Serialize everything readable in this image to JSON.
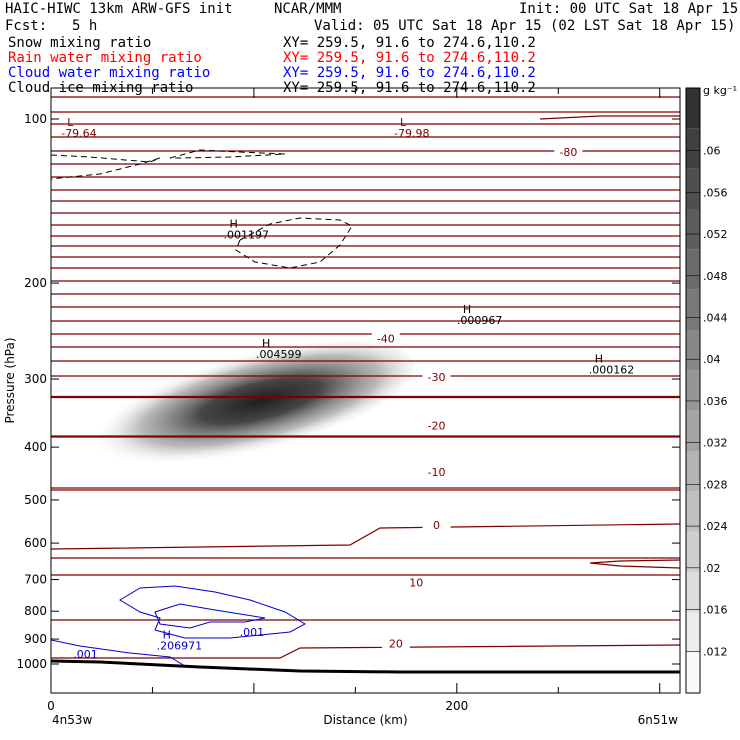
{
  "header": {
    "title_left": "HAIC-HIWC 13km ARW-GFS init",
    "center": "NCAR/MMM",
    "init": "Init: 00 UTC Sat 18 Apr 15",
    "fcst_label": "Fcst:",
    "fcst_value": "5 h",
    "valid": "Valid: 05 UTC Sat 18 Apr 15 (02 LST Sat 18 Apr 15)"
  },
  "legend": [
    {
      "name": "Snow mixing ratio",
      "xy": "XY= 259.5, 91.6 to 274.6,110.2",
      "color": "#000000"
    },
    {
      "name": "Rain water mixing ratio",
      "xy": "XY= 259.5, 91.6 to 274.6,110.2",
      "color": "#ff0000"
    },
    {
      "name": "Cloud water mixing ratio",
      "xy": "XY= 259.5, 91.6 to 274.6,110.2",
      "color": "#0000ff"
    },
    {
      "name": "Cloud ice mixing ratio",
      "xy": "XY= 259.5, 91.6 to 274.6,110.2",
      "color": "#000000"
    }
  ],
  "colors": {
    "temperature": "#7f0000",
    "cloud_water": "#0000cc",
    "snow": "#333333",
    "terrain": "#000000"
  },
  "chart_data": {
    "type": "heatmap",
    "xlabel": "Distance (km)",
    "ylabel": "Pressure (hPa)",
    "xlim": [
      0,
      310
    ],
    "ylim": [
      1050,
      80
    ],
    "x_ticks": [
      0,
      200
    ],
    "y_ticks": [
      100,
      200,
      300,
      400,
      500,
      600,
      700,
      800,
      900,
      1000
    ],
    "y_scale": "log",
    "x_end_labels": {
      "left": "4n53w",
      "right": "6n51w"
    },
    "colorbar": {
      "unit": "g kg⁻¹",
      "ticks": [
        0.012,
        0.016,
        0.02,
        0.024,
        0.028,
        0.032,
        0.036,
        0.04,
        0.044,
        0.048,
        0.052,
        0.056,
        0.06
      ],
      "tick_labels": [
        ".012",
        ".016",
        ".02",
        ".024",
        ".028",
        ".032",
        ".036",
        ".04",
        ".044",
        ".048",
        ".052",
        ".056",
        ".06"
      ],
      "range": [
        0.008,
        0.066
      ]
    },
    "shaded_field": {
      "center_x": 95,
      "center_p": 335,
      "peak": 0.06
    },
    "temperature_labels": [
      {
        "text": "-80",
        "x": 255,
        "p": 116
      },
      {
        "text": "-40",
        "x": 165,
        "p": 255
      },
      {
        "text": "-30",
        "x": 190,
        "p": 300
      },
      {
        "text": "-20",
        "x": 190,
        "p": 368
      },
      {
        "text": "-10",
        "x": 190,
        "p": 448
      },
      {
        "text": "0",
        "x": 190,
        "p": 560
      },
      {
        "text": "10",
        "x": 180,
        "p": 715
      },
      {
        "text": "20",
        "x": 170,
        "p": 925
      }
    ],
    "extrema": [
      {
        "kind": "L",
        "value": "-79.64",
        "x": 8,
        "p": 103,
        "color": "#7f0000"
      },
      {
        "kind": "L",
        "value": "-79.98",
        "x": 172,
        "p": 103,
        "color": "#7f0000"
      },
      {
        "kind": "H",
        "value": ".001197",
        "x": 88,
        "p": 158,
        "color": "#000000"
      },
      {
        "kind": "H",
        "value": ".004599",
        "x": 104,
        "p": 262,
        "color": "#000000"
      },
      {
        "kind": "H",
        "value": ".000967",
        "x": 203,
        "p": 227,
        "color": "#000000"
      },
      {
        "kind": "H",
        "value": ".000162",
        "x": 268,
        "p": 280,
        "color": "#000000"
      },
      {
        "kind": "H",
        "value": ".206971",
        "x": 55,
        "p": 898,
        "color": "#0000cc"
      }
    ],
    "cloud_water_labels": [
      {
        "text": ".001",
        "x": 93,
        "p": 888
      },
      {
        "text": ".001",
        "x": 11,
        "p": 975
      }
    ],
    "terrain_p": [
      990,
      994,
      1000,
      1004,
      1006,
      1008
    ]
  }
}
